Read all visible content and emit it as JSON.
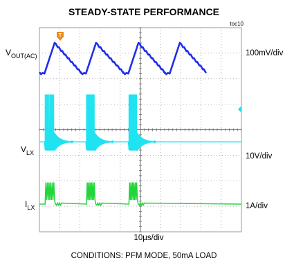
{
  "chart_data": {
    "type": "line",
    "title": "STEADY-STATE PERFORMANCE",
    "figure_id": "toc10",
    "conditions": "CONDITIONS: PFM MODE, 50mA LOAD",
    "xlabel": "10µs/div",
    "x_divisions": 10,
    "y_divisions": 8,
    "grid": true,
    "trigger_marker": "T",
    "colors": {
      "vout": "#1f2ee8",
      "vlx": "#1fe3f0",
      "ilx": "#22d63a",
      "grid": "#9a9a9a",
      "trigger": "#ee8a1a"
    },
    "series": [
      {
        "key": "vout",
        "label_main": "V",
        "label_sub": "OUT(AC)",
        "scale": "100mV/div",
        "ripple_periods_us": [
          0,
          20.5,
          41.5,
          62
        ],
        "burst_us": [
          0,
          2.5
        ],
        "peak_us": 7.5,
        "relative_amplitude_div": 0.55
      },
      {
        "key": "vlx",
        "label_main": "V",
        "label_sub": "LX",
        "scale": "10V/div",
        "bursts_us": [
          [
            2.8,
            7.5
          ],
          [
            23.3,
            27.5
          ],
          [
            44.3,
            48.5
          ]
        ],
        "pulse_count": 6,
        "pulse_height_div": 2,
        "ringing_after_burst": true
      },
      {
        "key": "ilx",
        "label_main": "I",
        "label_sub": "LX",
        "scale": "1A/div",
        "bursts_us": [
          [
            2.8,
            7.5
          ],
          [
            23.3,
            27.5
          ],
          [
            44.3,
            48.5
          ]
        ],
        "pulse_count": 6,
        "pulse_peak_a": 0.85
      }
    ]
  }
}
